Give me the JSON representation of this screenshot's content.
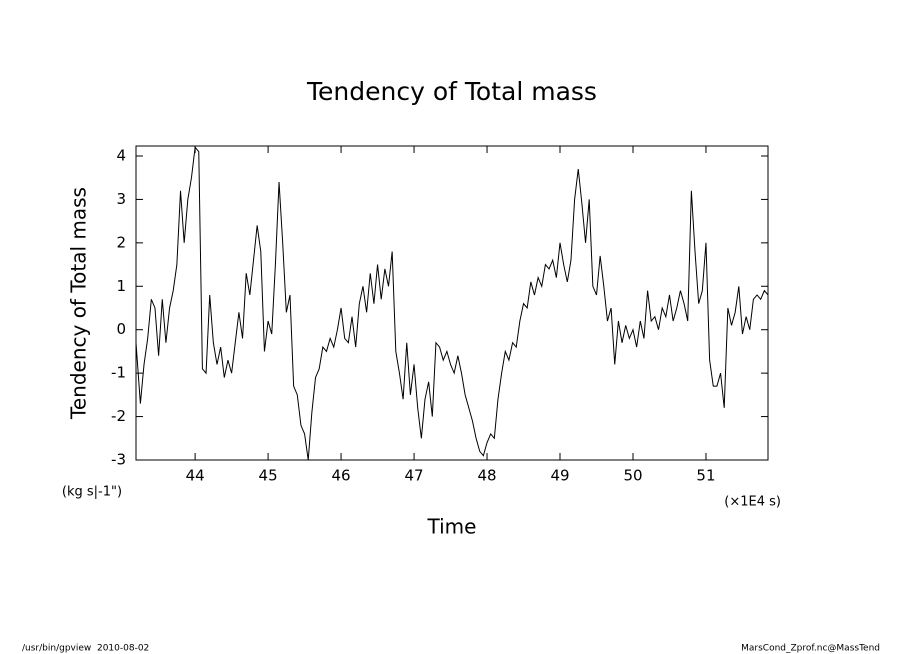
{
  "chart_data": {
    "type": "line",
    "title": "Tendency of Total mass",
    "y_label": "Tendency of Total mass",
    "y_unit": "(kg s|-1\")",
    "x_label": "Time",
    "x_unit": "(×1E4 s)",
    "color": "#000000",
    "xlim": [
      43.19,
      51.85
    ],
    "ylim": [
      -3,
      4.23
    ],
    "xticks": [
      44,
      45,
      46,
      47,
      48,
      49,
      50,
      51
    ],
    "yticks": [
      -3,
      -2,
      -1,
      0,
      1,
      2,
      3,
      4
    ],
    "x": [
      43.19,
      43.25,
      43.3,
      43.35,
      43.4,
      43.45,
      43.5,
      43.55,
      43.6,
      43.65,
      43.7,
      43.75,
      43.8,
      43.85,
      43.9,
      43.95,
      44,
      44.05,
      44.1,
      44.15,
      44.2,
      44.25,
      44.3,
      44.35,
      44.4,
      44.45,
      44.5,
      44.55,
      44.6,
      44.65,
      44.7,
      44.75,
      44.8,
      44.85,
      44.9,
      44.95,
      45,
      45.05,
      45.1,
      45.15,
      45.2,
      45.25,
      45.3,
      45.35,
      45.4,
      45.45,
      45.5,
      45.55,
      45.6,
      45.65,
      45.7,
      45.75,
      45.8,
      45.85,
      45.9,
      45.95,
      46,
      46.05,
      46.1,
      46.15,
      46.2,
      46.25,
      46.3,
      46.35,
      46.4,
      46.45,
      46.5,
      46.55,
      46.6,
      46.65,
      46.7,
      46.75,
      46.8,
      46.85,
      46.9,
      46.95,
      47,
      47.05,
      47.1,
      47.15,
      47.2,
      47.25,
      47.3,
      47.35,
      47.4,
      47.45,
      47.5,
      47.55,
      47.6,
      47.65,
      47.7,
      47.75,
      47.8,
      47.85,
      47.9,
      47.95,
      48,
      48.05,
      48.1,
      48.15,
      48.2,
      48.25,
      48.3,
      48.35,
      48.4,
      48.45,
      48.5,
      48.55,
      48.6,
      48.65,
      48.7,
      48.75,
      48.8,
      48.85,
      48.9,
      48.95,
      49,
      49.05,
      49.1,
      49.15,
      49.2,
      49.25,
      49.3,
      49.35,
      49.4,
      49.45,
      49.5,
      49.55,
      49.6,
      49.65,
      49.7,
      49.75,
      49.8,
      49.85,
      49.9,
      49.95,
      50,
      50.05,
      50.1,
      50.15,
      50.2,
      50.25,
      50.3,
      50.35,
      50.4,
      50.45,
      50.5,
      50.55,
      50.6,
      50.65,
      50.7,
      50.75,
      50.8,
      50.85,
      50.9,
      50.95,
      51,
      51.05,
      51.1,
      51.15,
      51.2,
      51.25,
      51.3,
      51.35,
      51.4,
      51.45,
      51.5,
      51.55,
      51.6,
      51.65,
      51.7,
      51.75,
      51.8,
      51.85
    ],
    "values": [
      -0.3,
      -1.7,
      -0.8,
      -0.2,
      0.7,
      0.5,
      -0.6,
      0.7,
      -0.3,
      0.5,
      0.9,
      1.5,
      3.2,
      2.0,
      3.0,
      3.5,
      4.2,
      4.1,
      -0.9,
      -1.0,
      0.8,
      -0.3,
      -0.8,
      -0.4,
      -1.1,
      -0.7,
      -1.0,
      -0.3,
      0.4,
      -0.2,
      1.3,
      0.8,
      1.6,
      2.4,
      1.8,
      -0.5,
      0.2,
      -0.1,
      1.5,
      3.4,
      2.0,
      0.4,
      0.8,
      -1.3,
      -1.5,
      -2.2,
      -2.4,
      -3.0,
      -1.9,
      -1.1,
      -0.9,
      -0.4,
      -0.5,
      -0.2,
      -0.4,
      0.0,
      0.5,
      -0.2,
      -0.3,
      0.3,
      -0.4,
      0.6,
      1.0,
      0.4,
      1.3,
      0.6,
      1.5,
      0.7,
      1.4,
      1.0,
      1.8,
      -0.5,
      -1.0,
      -1.6,
      -0.3,
      -1.5,
      -0.8,
      -1.8,
      -2.5,
      -1.6,
      -1.2,
      -2.0,
      -0.3,
      -0.4,
      -0.7,
      -0.5,
      -0.8,
      -1.0,
      -0.6,
      -1.0,
      -1.5,
      -1.8,
      -2.1,
      -2.5,
      -2.8,
      -2.9,
      -2.6,
      -2.4,
      -2.5,
      -1.6,
      -1.0,
      -0.5,
      -0.7,
      -0.3,
      -0.4,
      0.2,
      0.6,
      0.5,
      1.1,
      0.8,
      1.2,
      1.0,
      1.5,
      1.4,
      1.6,
      1.2,
      2.0,
      1.5,
      1.1,
      1.6,
      3.0,
      3.7,
      2.9,
      2.0,
      3.0,
      1.0,
      0.8,
      1.7,
      1.0,
      0.2,
      0.5,
      -0.8,
      0.2,
      -0.3,
      0.1,
      -0.2,
      0.0,
      -0.4,
      0.2,
      -0.2,
      0.9,
      0.2,
      0.3,
      0.0,
      0.5,
      0.3,
      0.8,
      0.2,
      0.5,
      0.9,
      0.6,
      0.2,
      3.2,
      1.8,
      0.6,
      0.9,
      2.0,
      -0.7,
      -1.3,
      -1.3,
      -1.0,
      -1.8,
      0.5,
      0.1,
      0.4,
      1.0,
      -0.1,
      0.3,
      0.0,
      0.7,
      0.8,
      0.7,
      0.9,
      0.8
    ]
  },
  "footer": {
    "left": "/usr/bin/gpview  2010-08-02",
    "right": "MarsCond_Zprof.nc@MassTend"
  }
}
